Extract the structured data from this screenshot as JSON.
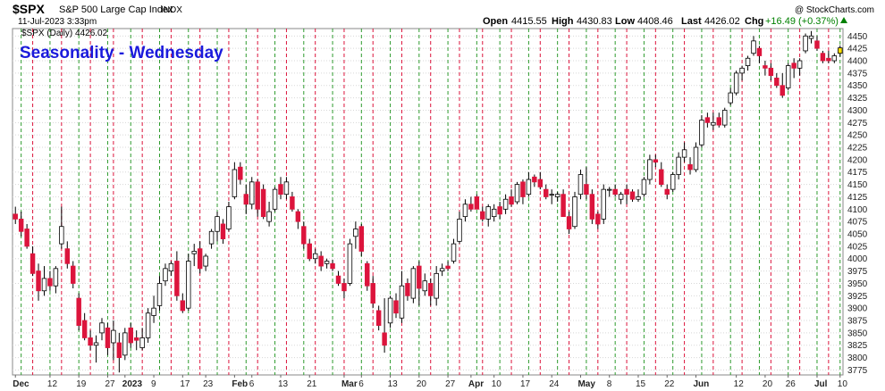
{
  "header": {
    "symbol": "$SPX",
    "name": "S&P 500 Large Cap Index",
    "exchange": "INDX",
    "date": "11-Jul-2023 3:33pm",
    "watermark": "@ StockCharts.com",
    "open_label": "Open",
    "open": "4415.55",
    "high_label": "High",
    "high": "4430.83",
    "low_label": "Low",
    "low": "4408.46",
    "last_label": "Last",
    "last": "4426.02",
    "chg_label": "Chg",
    "chg": "+16.49 (+0.37%)"
  },
  "chart_data": {
    "type": "candlestick",
    "title": "Seasonality - Wednesday",
    "legend": "$SPX (Daily) 4426.02",
    "ylim": [
      3765,
      4465
    ],
    "y_ticks": [
      "3775",
      "3800",
      "3825",
      "3850",
      "3875",
      "3900",
      "3925",
      "3950",
      "3975",
      "4000",
      "4025",
      "4050",
      "4075",
      "4100",
      "4125",
      "4150",
      "4175",
      "4200",
      "4225",
      "4250",
      "4275",
      "4300",
      "4325",
      "4350",
      "4375",
      "4400",
      "4425",
      "4450"
    ],
    "x_labels": [
      {
        "label": "Dec",
        "index": 0
      },
      {
        "label": "12",
        "index": 6
      },
      {
        "label": "19",
        "index": 11
      },
      {
        "label": "27",
        "index": 16
      },
      {
        "label": "2023",
        "index": 19
      },
      {
        "label": "9",
        "index": 24
      },
      {
        "label": "17",
        "index": 29
      },
      {
        "label": "23",
        "index": 33
      },
      {
        "label": "Feb",
        "index": 38
      },
      {
        "label": "6",
        "index": 41
      },
      {
        "label": "13",
        "index": 46
      },
      {
        "label": "21",
        "index": 51
      },
      {
        "label": "Mar",
        "index": 57
      },
      {
        "label": "6",
        "index": 60
      },
      {
        "label": "13",
        "index": 65
      },
      {
        "label": "20",
        "index": 70
      },
      {
        "label": "27",
        "index": 75
      },
      {
        "label": "Apr",
        "index": 79
      },
      {
        "label": "10",
        "index": 83
      },
      {
        "label": "17",
        "index": 88
      },
      {
        "label": "24",
        "index": 93
      },
      {
        "label": "May",
        "index": 98
      },
      {
        "label": "8",
        "index": 103
      },
      {
        "label": "15",
        "index": 108
      },
      {
        "label": "22",
        "index": 113
      },
      {
        "label": "Jun",
        "index": 118
      },
      {
        "label": "12",
        "index": 125
      },
      {
        "label": "20",
        "index": 130
      },
      {
        "label": "26",
        "index": 134
      },
      {
        "label": "Jul",
        "index": 139
      },
      {
        "label": "10",
        "index": 143
      }
    ],
    "wednesday_indices": [
      1,
      6,
      11,
      16,
      20,
      25,
      30,
      35,
      40,
      45,
      50,
      55,
      60,
      65,
      70,
      75,
      80,
      84,
      89,
      94,
      99,
      104,
      109,
      114,
      119,
      124,
      129,
      134,
      139,
      143
    ],
    "friday_indices": [
      3,
      8,
      13,
      17,
      22,
      27,
      32,
      37,
      42,
      47,
      52,
      57,
      62,
      67,
      72,
      77,
      81,
      86,
      91,
      96,
      101,
      106,
      111,
      116,
      121,
      126,
      131,
      136,
      141
    ],
    "candles": [
      {
        "o": 4090,
        "h": 4105,
        "l": 4070,
        "c": 4080
      },
      {
        "o": 4080,
        "h": 4095,
        "l": 4045,
        "c": 4055
      },
      {
        "o": 4060,
        "h": 4070,
        "l": 4020,
        "c": 4025
      },
      {
        "o": 4010,
        "h": 4025,
        "l": 3965,
        "c": 3970
      },
      {
        "o": 3975,
        "h": 3990,
        "l": 3915,
        "c": 3935
      },
      {
        "o": 3935,
        "h": 3985,
        "l": 3925,
        "c": 3960
      },
      {
        "o": 3960,
        "h": 3975,
        "l": 3935,
        "c": 3945
      },
      {
        "o": 3945,
        "h": 3985,
        "l": 3930,
        "c": 3980
      },
      {
        "o": 4030,
        "h": 4105,
        "l": 4020,
        "c": 4065
      },
      {
        "o": 4020,
        "h": 4035,
        "l": 3980,
        "c": 3990
      },
      {
        "o": 3985,
        "h": 3995,
        "l": 3940,
        "c": 3950
      },
      {
        "o": 3920,
        "h": 3930,
        "l": 3855,
        "c": 3865
      },
      {
        "o": 3875,
        "h": 3890,
        "l": 3835,
        "c": 3840
      },
      {
        "o": 3840,
        "h": 3855,
        "l": 3815,
        "c": 3825
      },
      {
        "o": 3825,
        "h": 3845,
        "l": 3790,
        "c": 3830
      },
      {
        "o": 3850,
        "h": 3880,
        "l": 3835,
        "c": 3870
      },
      {
        "o": 3860,
        "h": 3870,
        "l": 3805,
        "c": 3820
      },
      {
        "o": 3830,
        "h": 3875,
        "l": 3795,
        "c": 3855
      },
      {
        "o": 3830,
        "h": 3850,
        "l": 3770,
        "c": 3800
      },
      {
        "o": 3805,
        "h": 3860,
        "l": 3795,
        "c": 3850
      },
      {
        "o": 3860,
        "h": 3870,
        "l": 3820,
        "c": 3830
      },
      {
        "o": 3840,
        "h": 3855,
        "l": 3815,
        "c": 3835
      },
      {
        "o": 3820,
        "h": 3860,
        "l": 3815,
        "c": 3840
      },
      {
        "o": 3840,
        "h": 3900,
        "l": 3830,
        "c": 3890
      },
      {
        "o": 3885,
        "h": 3925,
        "l": 3870,
        "c": 3900
      },
      {
        "o": 3905,
        "h": 3965,
        "l": 3895,
        "c": 3950
      },
      {
        "o": 3955,
        "h": 3990,
        "l": 3945,
        "c": 3980
      },
      {
        "o": 3975,
        "h": 3995,
        "l": 3965,
        "c": 3990
      },
      {
        "o": 3995,
        "h": 4015,
        "l": 3915,
        "c": 3925
      },
      {
        "o": 3915,
        "h": 3930,
        "l": 3890,
        "c": 3895
      },
      {
        "o": 3900,
        "h": 4010,
        "l": 3895,
        "c": 3995
      },
      {
        "o": 4010,
        "h": 4030,
        "l": 3985,
        "c": 4015
      },
      {
        "o": 4020,
        "h": 4035,
        "l": 3970,
        "c": 3980
      },
      {
        "o": 3985,
        "h": 4010,
        "l": 3975,
        "c": 4005
      },
      {
        "o": 4030,
        "h": 4060,
        "l": 4020,
        "c": 4055
      },
      {
        "o": 4055,
        "h": 4095,
        "l": 4035,
        "c": 4085
      },
      {
        "o": 4070,
        "h": 4080,
        "l": 4030,
        "c": 4040
      },
      {
        "o": 4060,
        "h": 4115,
        "l": 4055,
        "c": 4105
      },
      {
        "o": 4125,
        "h": 4195,
        "l": 4120,
        "c": 4180
      },
      {
        "o": 4185,
        "h": 4195,
        "l": 4150,
        "c": 4160
      },
      {
        "o": 4130,
        "h": 4150,
        "l": 4090,
        "c": 4110
      },
      {
        "o": 4110,
        "h": 4165,
        "l": 4100,
        "c": 4155
      },
      {
        "o": 4155,
        "h": 4160,
        "l": 4085,
        "c": 4100
      },
      {
        "o": 4140,
        "h": 4150,
        "l": 4080,
        "c": 4085
      },
      {
        "o": 4075,
        "h": 4115,
        "l": 4065,
        "c": 4095
      },
      {
        "o": 4100,
        "h": 4145,
        "l": 4095,
        "c": 4140
      },
      {
        "o": 4150,
        "h": 4165,
        "l": 4120,
        "c": 4130
      },
      {
        "o": 4130,
        "h": 4165,
        "l": 4120,
        "c": 4155
      },
      {
        "o": 4125,
        "h": 4135,
        "l": 4095,
        "c": 4100
      },
      {
        "o": 4095,
        "h": 4100,
        "l": 4060,
        "c": 4075
      },
      {
        "o": 4065,
        "h": 4075,
        "l": 4020,
        "c": 4030
      },
      {
        "o": 4030,
        "h": 4040,
        "l": 3995,
        "c": 4000
      },
      {
        "o": 4000,
        "h": 4020,
        "l": 3990,
        "c": 4010
      },
      {
        "o": 4005,
        "h": 4015,
        "l": 3975,
        "c": 3985
      },
      {
        "o": 3990,
        "h": 4000,
        "l": 3980,
        "c": 3995
      },
      {
        "o": 3990,
        "h": 3998,
        "l": 3975,
        "c": 3980
      },
      {
        "o": 3965,
        "h": 3975,
        "l": 3945,
        "c": 3950
      },
      {
        "o": 3950,
        "h": 3960,
        "l": 3920,
        "c": 3935
      },
      {
        "o": 3950,
        "h": 4040,
        "l": 3945,
        "c": 4030
      },
      {
        "o": 4045,
        "h": 4075,
        "l": 4020,
        "c": 4060
      },
      {
        "o": 4065,
        "h": 4070,
        "l": 4005,
        "c": 4015
      },
      {
        "o": 3990,
        "h": 3995,
        "l": 3935,
        "c": 3945
      },
      {
        "o": 3950,
        "h": 3965,
        "l": 3900,
        "c": 3910
      },
      {
        "o": 3895,
        "h": 3905,
        "l": 3855,
        "c": 3865
      },
      {
        "o": 3850,
        "h": 3920,
        "l": 3810,
        "c": 3825
      },
      {
        "o": 3870,
        "h": 3925,
        "l": 3860,
        "c": 3920
      },
      {
        "o": 3915,
        "h": 3930,
        "l": 3880,
        "c": 3890
      },
      {
        "o": 3880,
        "h": 3975,
        "l": 3870,
        "c": 3945
      },
      {
        "o": 3950,
        "h": 3960,
        "l": 3915,
        "c": 3925
      },
      {
        "o": 3920,
        "h": 3985,
        "l": 3910,
        "c": 3980
      },
      {
        "o": 3985,
        "h": 3995,
        "l": 3905,
        "c": 3940
      },
      {
        "o": 3935,
        "h": 3970,
        "l": 3925,
        "c": 3955
      },
      {
        "o": 3950,
        "h": 3960,
        "l": 3905,
        "c": 3925
      },
      {
        "o": 3920,
        "h": 3985,
        "l": 3905,
        "c": 3970
      },
      {
        "o": 3975,
        "h": 3990,
        "l": 3965,
        "c": 3980
      },
      {
        "o": 3985,
        "h": 3995,
        "l": 3975,
        "c": 3980
      },
      {
        "o": 3995,
        "h": 4040,
        "l": 3990,
        "c": 4030
      },
      {
        "o": 4035,
        "h": 4095,
        "l": 4030,
        "c": 4080
      },
      {
        "o": 4085,
        "h": 4120,
        "l": 4075,
        "c": 4110
      },
      {
        "o": 4110,
        "h": 4125,
        "l": 4095,
        "c": 4100
      },
      {
        "o": 4125,
        "h": 4130,
        "l": 4100,
        "c": 4100
      },
      {
        "o": 4095,
        "h": 4105,
        "l": 4075,
        "c": 4080
      },
      {
        "o": 4080,
        "h": 4110,
        "l": 4065,
        "c": 4105
      },
      {
        "o": 4085,
        "h": 4110,
        "l": 4075,
        "c": 4100
      },
      {
        "o": 4105,
        "h": 4115,
        "l": 4080,
        "c": 4090
      },
      {
        "o": 4100,
        "h": 4130,
        "l": 4090,
        "c": 4120
      },
      {
        "o": 4125,
        "h": 4140,
        "l": 4105,
        "c": 4110
      },
      {
        "o": 4115,
        "h": 4155,
        "l": 4110,
        "c": 4150
      },
      {
        "o": 4155,
        "h": 4160,
        "l": 4110,
        "c": 4125
      },
      {
        "o": 4130,
        "h": 4175,
        "l": 4125,
        "c": 4160
      },
      {
        "o": 4165,
        "h": 4170,
        "l": 4145,
        "c": 4155
      },
      {
        "o": 4160,
        "h": 4175,
        "l": 4140,
        "c": 4145
      },
      {
        "o": 4140,
        "h": 4150,
        "l": 4120,
        "c": 4125
      },
      {
        "o": 4130,
        "h": 4140,
        "l": 4110,
        "c": 4130
      },
      {
        "o": 4125,
        "h": 4135,
        "l": 4115,
        "c": 4130
      },
      {
        "o": 4130,
        "h": 4140,
        "l": 4085,
        "c": 4085
      },
      {
        "o": 4085,
        "h": 4095,
        "l": 4050,
        "c": 4060
      },
      {
        "o": 4065,
        "h": 4135,
        "l": 4060,
        "c": 4125
      },
      {
        "o": 4130,
        "h": 4180,
        "l": 4120,
        "c": 4170
      },
      {
        "o": 4150,
        "h": 4185,
        "l": 4120,
        "c": 4130
      },
      {
        "o": 4130,
        "h": 4140,
        "l": 4070,
        "c": 4080
      },
      {
        "o": 4090,
        "h": 4095,
        "l": 4060,
        "c": 4070
      },
      {
        "o": 4080,
        "h": 4150,
        "l": 4070,
        "c": 4140
      },
      {
        "o": 4140,
        "h": 4145,
        "l": 4125,
        "c": 4140
      },
      {
        "o": 4140,
        "h": 4150,
        "l": 4125,
        "c": 4130
      },
      {
        "o": 4120,
        "h": 4135,
        "l": 4110,
        "c": 4130
      },
      {
        "o": 4140,
        "h": 4150,
        "l": 4110,
        "c": 4130
      },
      {
        "o": 4135,
        "h": 4140,
        "l": 4115,
        "c": 4120
      },
      {
        "o": 4120,
        "h": 4140,
        "l": 4115,
        "c": 4125
      },
      {
        "o": 4130,
        "h": 4165,
        "l": 4125,
        "c": 4160
      },
      {
        "o": 4160,
        "h": 4210,
        "l": 4150,
        "c": 4200
      },
      {
        "o": 4200,
        "h": 4210,
        "l": 4185,
        "c": 4195
      },
      {
        "o": 4180,
        "h": 4195,
        "l": 4145,
        "c": 4150
      },
      {
        "o": 4140,
        "h": 4150,
        "l": 4120,
        "c": 4130
      },
      {
        "o": 4140,
        "h": 4175,
        "l": 4135,
        "c": 4170
      },
      {
        "o": 4170,
        "h": 4215,
        "l": 4160,
        "c": 4205
      },
      {
        "o": 4205,
        "h": 4235,
        "l": 4195,
        "c": 4220
      },
      {
        "o": 4190,
        "h": 4205,
        "l": 4170,
        "c": 4180
      },
      {
        "o": 4180,
        "h": 4235,
        "l": 4175,
        "c": 4225
      },
      {
        "o": 4230,
        "h": 4290,
        "l": 4225,
        "c": 4280
      },
      {
        "o": 4285,
        "h": 4295,
        "l": 4265,
        "c": 4275
      },
      {
        "o": 4270,
        "h": 4295,
        "l": 4260,
        "c": 4275
      },
      {
        "o": 4285,
        "h": 4295,
        "l": 4265,
        "c": 4270
      },
      {
        "o": 4270,
        "h": 4305,
        "l": 4265,
        "c": 4300
      },
      {
        "o": 4315,
        "h": 4345,
        "l": 4310,
        "c": 4335
      },
      {
        "o": 4335,
        "h": 4380,
        "l": 4330,
        "c": 4375
      },
      {
        "o": 4375,
        "h": 4390,
        "l": 4360,
        "c": 4385
      },
      {
        "o": 4390,
        "h": 4410,
        "l": 4380,
        "c": 4405
      },
      {
        "o": 4415,
        "h": 4450,
        "l": 4410,
        "c": 4440
      },
      {
        "o": 4425,
        "h": 4430,
        "l": 4395,
        "c": 4410
      },
      {
        "o": 4390,
        "h": 4400,
        "l": 4370,
        "c": 4385
      },
      {
        "o": 4385,
        "h": 4395,
        "l": 4360,
        "c": 4370
      },
      {
        "o": 4365,
        "h": 4375,
        "l": 4345,
        "c": 4350
      },
      {
        "o": 4350,
        "h": 4375,
        "l": 4325,
        "c": 4330
      },
      {
        "o": 4345,
        "h": 4395,
        "l": 4340,
        "c": 4390
      },
      {
        "o": 4395,
        "h": 4405,
        "l": 4365,
        "c": 4385
      },
      {
        "o": 4385,
        "h": 4405,
        "l": 4370,
        "c": 4400
      },
      {
        "o": 4420,
        "h": 4455,
        "l": 4415,
        "c": 4450
      },
      {
        "o": 4445,
        "h": 4460,
        "l": 4435,
        "c": 4450
      },
      {
        "o": 4440,
        "h": 4450,
        "l": 4420,
        "c": 4425
      },
      {
        "o": 4415,
        "h": 4420,
        "l": 4395,
        "c": 4400
      },
      {
        "o": 4405,
        "h": 4420,
        "l": 4395,
        "c": 4400
      },
      {
        "o": 4400,
        "h": 4415,
        "l": 4395,
        "c": 4410
      },
      {
        "o": 4415,
        "h": 4431,
        "l": 4408,
        "c": 4426
      }
    ],
    "colors": {
      "up_fill": "#ffffff",
      "down_fill": "#dc143c",
      "candle_edge": "#000000",
      "last_candle_highlight": "#ffe000",
      "chg_color": "#008000",
      "title_color": "#1a1adc",
      "wednesday_line": "#2e9b2e",
      "friday_line": "#dc143c",
      "grid": "#d8d8d8"
    }
  }
}
